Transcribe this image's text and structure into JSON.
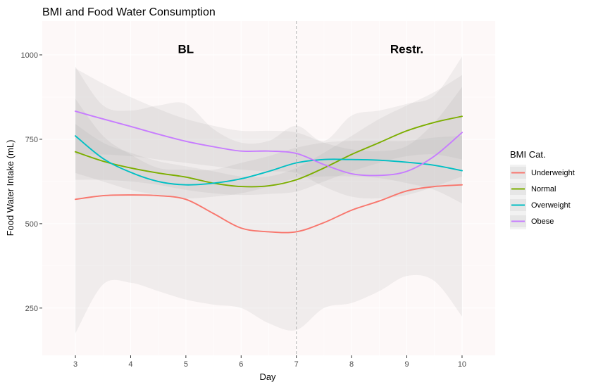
{
  "chart_data": {
    "type": "line",
    "title": "BMI and Food Water Consumption",
    "xlabel": "Day",
    "ylabel": "Food Water Intake (mL)",
    "xlim": [
      2.4,
      10.6
    ],
    "ylim": [
      110,
      1100
    ],
    "x_ticks": [
      3,
      4,
      5,
      6,
      7,
      8,
      9,
      10
    ],
    "y_ticks": [
      250,
      500,
      750,
      1000
    ],
    "grid": true,
    "vline": {
      "x": 7,
      "style": "dashed"
    },
    "annotations": [
      {
        "text": "BL",
        "x": 5,
        "y": 1018
      },
      {
        "text": "Restr.",
        "x": 9,
        "y": 1018
      }
    ],
    "legend": {
      "title": "BMI Cat.",
      "position": "right"
    },
    "x": [
      3,
      3.5,
      4,
      4.5,
      5,
      5.5,
      6,
      6.5,
      7,
      7.5,
      8,
      8.5,
      9,
      9.5,
      10
    ],
    "series": [
      {
        "name": "Underweight",
        "color": "#F8766D",
        "values": [
          572,
          583,
          585,
          583,
          572,
          530,
          487,
          476,
          476,
          503,
          540,
          567,
          597,
          610,
          615
        ],
        "ci_lower": [
          175,
          320,
          325,
          300,
          275,
          260,
          250,
          205,
          185,
          250,
          265,
          300,
          345,
          330,
          225
        ],
        "ci_upper": [
          965,
          850,
          835,
          850,
          855,
          780,
          740,
          745,
          790,
          745,
          820,
          835,
          855,
          880,
          995
        ]
      },
      {
        "name": "Normal",
        "color": "#7CAE00",
        "values": [
          713,
          685,
          665,
          650,
          638,
          620,
          610,
          612,
          630,
          665,
          705,
          740,
          775,
          800,
          818
        ],
        "ci_lower": [
          630,
          630,
          625,
          615,
          600,
          590,
          585,
          588,
          595,
          625,
          655,
          680,
          700,
          705,
          690
        ],
        "ci_upper": [
          795,
          740,
          710,
          685,
          670,
          655,
          640,
          640,
          665,
          710,
          760,
          810,
          850,
          890,
          940
        ]
      },
      {
        "name": "Overweight",
        "color": "#00BFC4",
        "values": [
          760,
          693,
          652,
          625,
          615,
          620,
          633,
          655,
          680,
          690,
          690,
          688,
          682,
          673,
          657
        ],
        "ci_lower": [
          650,
          625,
          600,
          585,
          575,
          580,
          590,
          610,
          635,
          640,
          640,
          635,
          620,
          600,
          560
        ],
        "ci_upper": [
          870,
          760,
          705,
          665,
          660,
          660,
          680,
          700,
          725,
          740,
          745,
          745,
          745,
          755,
          760
        ]
      },
      {
        "name": "Obese",
        "color": "#C77CFF",
        "values": [
          833,
          810,
          788,
          765,
          744,
          728,
          715,
          715,
          708,
          675,
          648,
          643,
          655,
          700,
          770
        ],
        "ci_lower": [
          705,
          705,
          700,
          690,
          680,
          670,
          660,
          655,
          650,
          610,
          580,
          575,
          585,
          610,
          640
        ],
        "ci_upper": [
          960,
          915,
          875,
          840,
          810,
          790,
          775,
          775,
          770,
          740,
          720,
          715,
          730,
          800,
          905
        ]
      }
    ]
  }
}
